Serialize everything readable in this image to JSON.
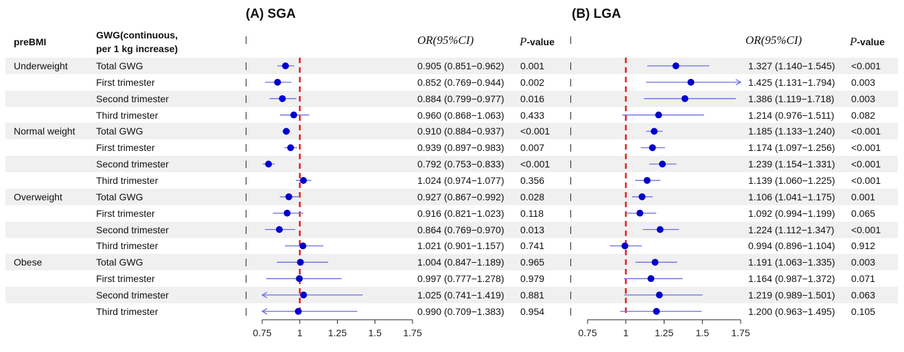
{
  "headers": {
    "prebmi": "preBMI",
    "gwg_line1": "GWG(continuous,",
    "gwg_line2": "per 1 kg increase)",
    "or_label": "OR(95%CI)",
    "p_italic": "P",
    "p_rest": "-value"
  },
  "colors": {
    "point": "#0000cc",
    "ci_line": "#6a6ae0",
    "reference": "#e02020",
    "stripe": "#f0f0f0"
  },
  "chart_data": [
    {
      "type": "forest",
      "title": "(A) SGA",
      "reference_line": 1,
      "xlim": [
        0.75,
        1.75
      ],
      "xticks": [
        "0.75",
        "1",
        "1.25",
        "1.5",
        "1.75"
      ],
      "rows": [
        {
          "group": "Underweight",
          "label": "Total GWG",
          "or": 0.905,
          "lo": 0.851,
          "hi": 0.962,
          "ci_text": "0.905 (0.851−0.962)",
          "p": "0.001"
        },
        {
          "group": "",
          "label": "First trimester",
          "or": 0.852,
          "lo": 0.769,
          "hi": 0.944,
          "ci_text": "0.852 (0.769−0.944)",
          "p": "0.002"
        },
        {
          "group": "",
          "label": "Second trimester",
          "or": 0.884,
          "lo": 0.799,
          "hi": 0.977,
          "ci_text": "0.884 (0.799−0.977)",
          "p": "0.016"
        },
        {
          "group": "",
          "label": "Third trimester",
          "or": 0.96,
          "lo": 0.868,
          "hi": 1.063,
          "ci_text": "0.960 (0.868−1.063)",
          "p": "0.433"
        },
        {
          "group": "Normal weight",
          "label": "Total GWG",
          "or": 0.91,
          "lo": 0.884,
          "hi": 0.937,
          "ci_text": "0.910 (0.884−0.937)",
          "p": "<0.001"
        },
        {
          "group": "",
          "label": "First trimester",
          "or": 0.939,
          "lo": 0.897,
          "hi": 0.983,
          "ci_text": "0.939 (0.897−0.983)",
          "p": "0.007"
        },
        {
          "group": "",
          "label": "Second trimester",
          "or": 0.792,
          "lo": 0.753,
          "hi": 0.833,
          "ci_text": "0.792 (0.753−0.833)",
          "p": "<0.001"
        },
        {
          "group": "",
          "label": "Third trimester",
          "or": 1.024,
          "lo": 0.974,
          "hi": 1.077,
          "ci_text": "1.024 (0.974−1.077)",
          "p": "0.356"
        },
        {
          "group": "Overweight",
          "label": "Total GWG",
          "or": 0.927,
          "lo": 0.867,
          "hi": 0.992,
          "ci_text": "0.927 (0.867−0.992)",
          "p": "0.028"
        },
        {
          "group": "",
          "label": "First trimester",
          "or": 0.916,
          "lo": 0.821,
          "hi": 1.023,
          "ci_text": "0.916 (0.821−1.023)",
          "p": "0.118"
        },
        {
          "group": "",
          "label": "Second trimester",
          "or": 0.864,
          "lo": 0.769,
          "hi": 0.97,
          "ci_text": "0.864 (0.769−0.970)",
          "p": "0.013"
        },
        {
          "group": "",
          "label": "Third trimester",
          "or": 1.021,
          "lo": 0.901,
          "hi": 1.157,
          "ci_text": "1.021 (0.901−1.157)",
          "p": "0.741"
        },
        {
          "group": "Obese",
          "label": "Total GWG",
          "or": 1.004,
          "lo": 0.847,
          "hi": 1.189,
          "ci_text": "1.004 (0.847−1.189)",
          "p": "0.965"
        },
        {
          "group": "",
          "label": "First trimester",
          "or": 0.997,
          "lo": 0.777,
          "hi": 1.278,
          "ci_text": "0.997 (0.777−1.278)",
          "p": "0.979"
        },
        {
          "group": "",
          "label": "Second trimester",
          "or": 1.025,
          "lo": 0.741,
          "hi": 1.419,
          "ci_text": "1.025 (0.741−1.419)",
          "p": "0.881"
        },
        {
          "group": "",
          "label": "Third trimester",
          "or": 0.99,
          "lo": 0.709,
          "hi": 1.383,
          "ci_text": "0.990 (0.709−1.383)",
          "p": "0.954"
        }
      ]
    },
    {
      "type": "forest",
      "title": "(B) LGA",
      "reference_line": 1,
      "xlim": [
        0.75,
        1.75
      ],
      "xticks": [
        "0.75",
        "1",
        "1.25",
        "1.5",
        "1.75"
      ],
      "rows": [
        {
          "or": 1.327,
          "lo": 1.14,
          "hi": 1.545,
          "ci_text": "1.327 (1.140−1.545)",
          "p": "<0.001"
        },
        {
          "or": 1.425,
          "lo": 1.131,
          "hi": 1.794,
          "ci_text": "1.425 (1.131−1.794)",
          "p": "0.003"
        },
        {
          "or": 1.386,
          "lo": 1.119,
          "hi": 1.718,
          "ci_text": "1.386 (1.119−1.718)",
          "p": "0.003"
        },
        {
          "or": 1.214,
          "lo": 0.976,
          "hi": 1.511,
          "ci_text": "1.214 (0.976−1.511)",
          "p": "0.082"
        },
        {
          "or": 1.185,
          "lo": 1.133,
          "hi": 1.24,
          "ci_text": "1.185 (1.133−1.240)",
          "p": "<0.001"
        },
        {
          "or": 1.174,
          "lo": 1.097,
          "hi": 1.256,
          "ci_text": "1.174 (1.097−1.256)",
          "p": "<0.001"
        },
        {
          "or": 1.239,
          "lo": 1.154,
          "hi": 1.331,
          "ci_text": "1.239 (1.154−1.331)",
          "p": "<0.001"
        },
        {
          "or": 1.139,
          "lo": 1.06,
          "hi": 1.225,
          "ci_text": "1.139 (1.060−1.225)",
          "p": "<0.001"
        },
        {
          "or": 1.106,
          "lo": 1.041,
          "hi": 1.175,
          "ci_text": "1.106 (1.041−1.175)",
          "p": "0.001"
        },
        {
          "or": 1.092,
          "lo": 0.994,
          "hi": 1.199,
          "ci_text": "1.092 (0.994−1.199)",
          "p": "0.065"
        },
        {
          "or": 1.224,
          "lo": 1.112,
          "hi": 1.347,
          "ci_text": "1.224 (1.112−1.347)",
          "p": "<0.001"
        },
        {
          "or": 0.994,
          "lo": 0.896,
          "hi": 1.104,
          "ci_text": "0.994 (0.896−1.104)",
          "p": "0.912"
        },
        {
          "or": 1.191,
          "lo": 1.063,
          "hi": 1.335,
          "ci_text": "1.191 (1.063−1.335)",
          "p": "0.003"
        },
        {
          "or": 1.164,
          "lo": 0.987,
          "hi": 1.372,
          "ci_text": "1.164 (0.987−1.372)",
          "p": "0.071"
        },
        {
          "or": 1.219,
          "lo": 0.989,
          "hi": 1.501,
          "ci_text": "1.219 (0.989−1.501)",
          "p": "0.063"
        },
        {
          "or": 1.2,
          "lo": 0.963,
          "hi": 1.495,
          "ci_text": "1.200 (0.963−1.495)",
          "p": "0.105"
        }
      ]
    }
  ]
}
